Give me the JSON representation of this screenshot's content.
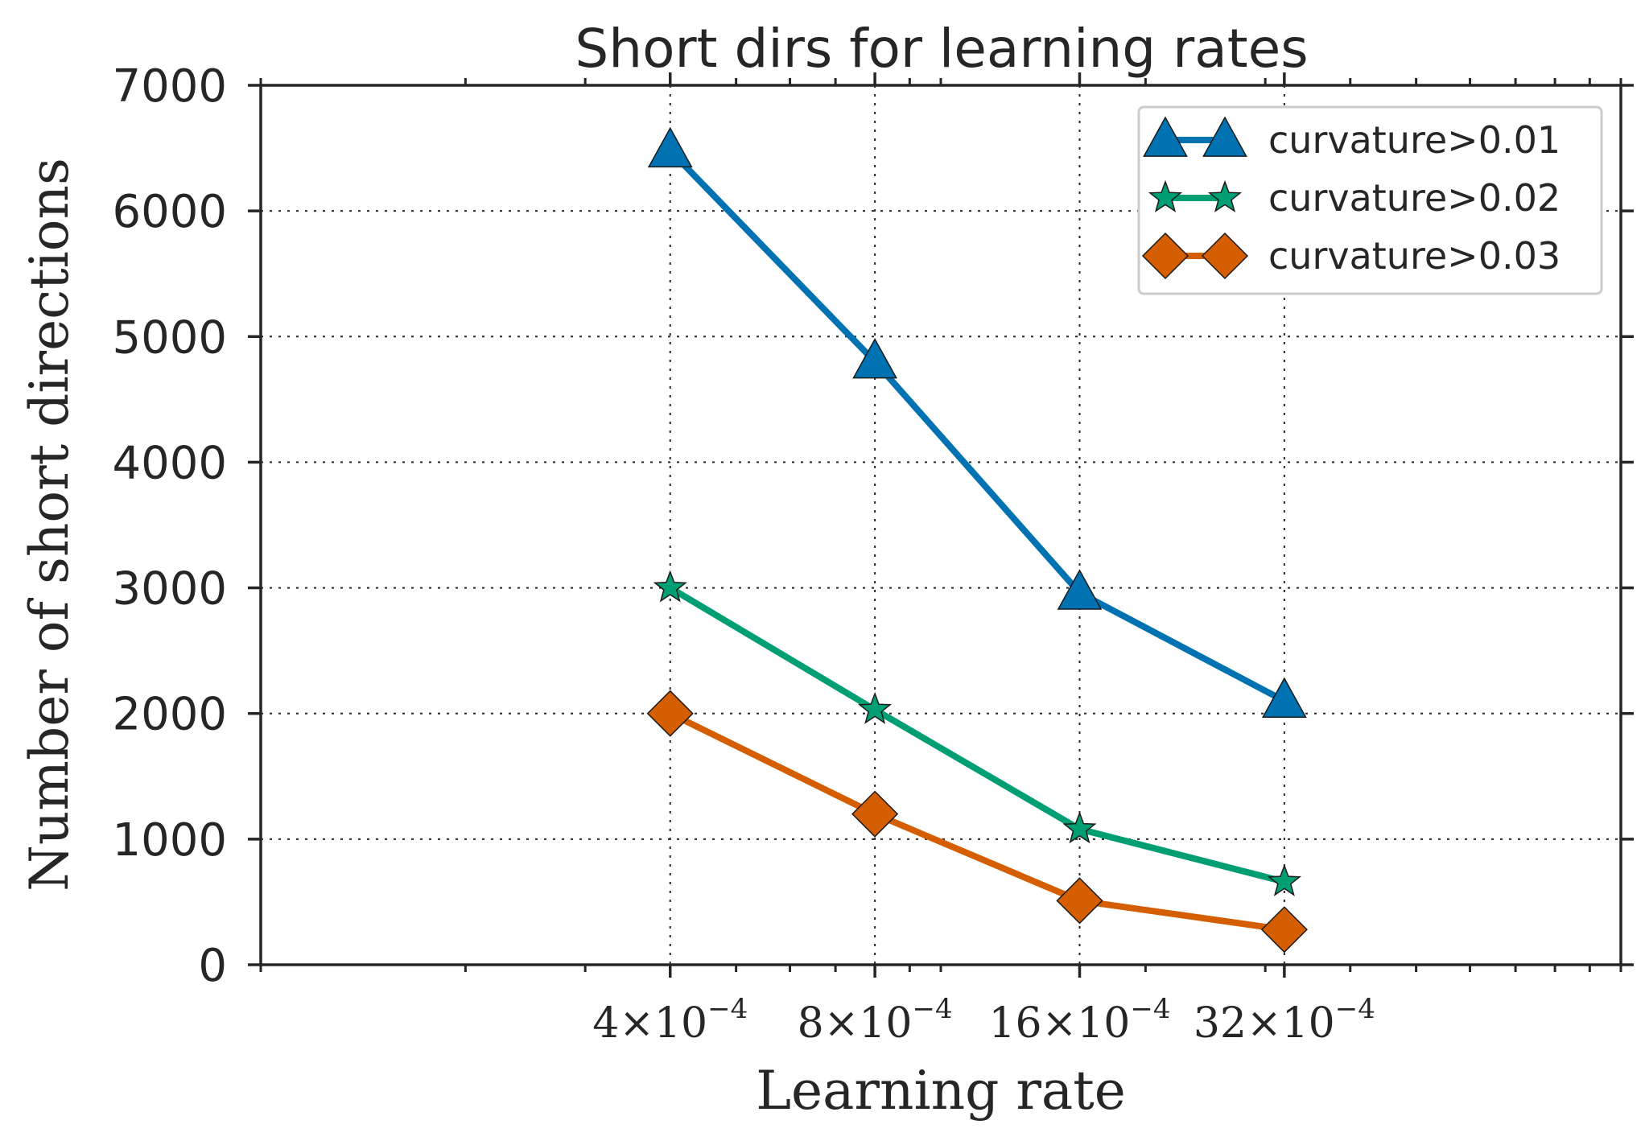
{
  "chart_data": {
    "type": "line",
    "title": "Short dirs for learning rates",
    "xlabel": "Learning rate",
    "ylabel": "Number of short directions",
    "x_scale": "log2",
    "x_values": [
      0.0004,
      0.0008,
      0.0016,
      0.0032
    ],
    "x_tick_labels": [
      {
        "mantissa": "4",
        "times": "×",
        "base": "10",
        "exponent": "−4"
      },
      {
        "mantissa": "8",
        "times": "×",
        "base": "10",
        "exponent": "−4"
      },
      {
        "mantissa": "16",
        "times": "×",
        "base": "10",
        "exponent": "−4"
      },
      {
        "mantissa": "32",
        "times": "×",
        "base": "10",
        "exponent": "−4"
      }
    ],
    "xlim": [
      0.0001,
      0.01
    ],
    "ylim": [
      0,
      7000
    ],
    "y_ticks": [
      0,
      1000,
      2000,
      3000,
      4000,
      5000,
      6000,
      7000
    ],
    "y_tick_labels": [
      "0",
      "1000",
      "2000",
      "3000",
      "4000",
      "5000",
      "6000",
      "7000"
    ],
    "grid": true,
    "legend_position": "top-right",
    "series": [
      {
        "name": "curvature>0.01",
        "marker": "triangle",
        "color": "#0072b2",
        "values": [
          6480,
          4800,
          2960,
          2100
        ]
      },
      {
        "name": "curvature>0.02",
        "marker": "star",
        "color": "#009e73",
        "values": [
          3000,
          2030,
          1080,
          660
        ]
      },
      {
        "name": "curvature>0.03",
        "marker": "diamond",
        "color": "#d55e00",
        "values": [
          2000,
          1200,
          510,
          280
        ]
      }
    ]
  }
}
